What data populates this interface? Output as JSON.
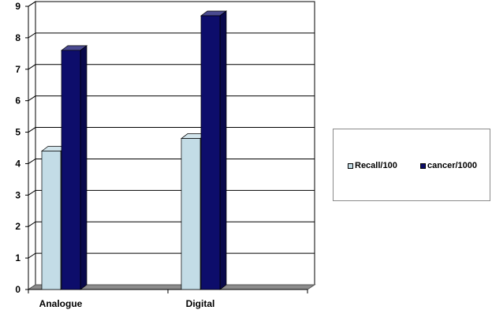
{
  "chart_data": {
    "type": "bar",
    "categories": [
      "Analogue",
      "Digital"
    ],
    "series": [
      {
        "name": "Recall/100",
        "values": [
          4.4,
          4.8
        ],
        "color": "#c3dce6"
      },
      {
        "name": "cancer/1000",
        "values": [
          7.6,
          8.7
        ],
        "color": "#0d0d6b"
      }
    ],
    "title": "",
    "xlabel": "",
    "ylabel": "",
    "ylim": [
      0,
      9
    ],
    "yticks": [
      "0",
      "1",
      "2",
      "3",
      "4",
      "5",
      "6",
      "7",
      "8",
      "9"
    ],
    "grid": true,
    "legend_position": "right",
    "style": "3d"
  }
}
